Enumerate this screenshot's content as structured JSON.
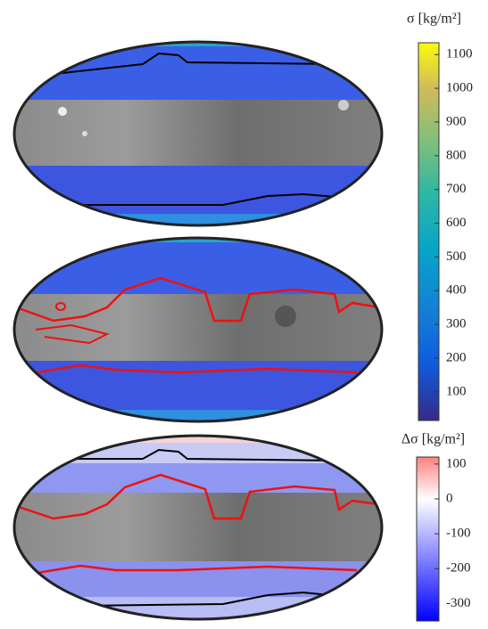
{
  "chart_data": [
    {
      "type": "colorbar",
      "title": "σ [kg/m²]",
      "colormap": "parula",
      "ylim": [
        15,
        1135
      ],
      "yticks": [
        100,
        200,
        300,
        400,
        500,
        600,
        700,
        800,
        900,
        1000,
        1100
      ]
    },
    {
      "type": "colorbar",
      "title": "Δσ [kg/m²]",
      "colormap": "bwr",
      "ylim": [
        -350,
        120
      ],
      "yticks": [
        -300,
        -200,
        -100,
        0,
        100
      ]
    }
  ]
}
